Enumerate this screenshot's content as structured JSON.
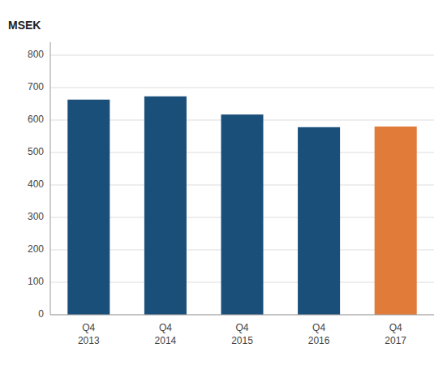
{
  "chart_data": {
    "type": "bar",
    "ylabel": "MSEK",
    "categories": [
      "Q4\n2013",
      "Q4\n2014",
      "Q4\n2015",
      "Q4\n2016",
      "Q4\n2017"
    ],
    "values": [
      663,
      673,
      617,
      578,
      580
    ],
    "colors": [
      "#1a4f7a",
      "#1a4f7a",
      "#1a4f7a",
      "#1a4f7a",
      "#e07b39"
    ],
    "ylim": [
      0,
      840
    ],
    "yticks": [
      0,
      100,
      200,
      300,
      400,
      500,
      600,
      700,
      800
    ],
    "grid": true
  }
}
